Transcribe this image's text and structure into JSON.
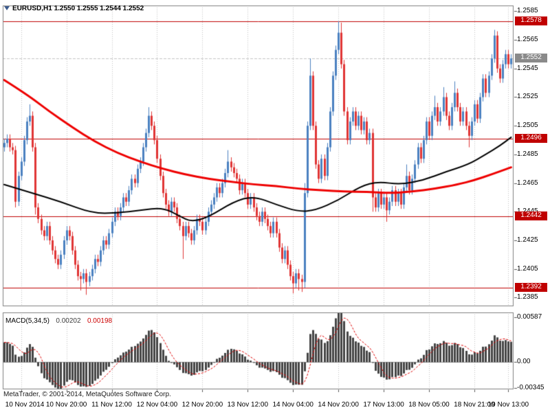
{
  "header": {
    "quote_line": "EURUSD,H1 1.2550 1.2555 1.2544 1.2552"
  },
  "footer": {
    "credit": "MetaTrader, © 2001-2014, MetaQuotes Software Corp."
  },
  "colors": {
    "background": "#ffffff",
    "bull": "#4a80c0",
    "bear": "#e03434",
    "ma_fast": "#000000",
    "ma_slow": "#ee0000",
    "hline": "#c00000",
    "hline_label_bg": "#c00000",
    "hline_label_text": "#ffffff",
    "bid_label_bg": "#8a8a8a",
    "bid_label_text": "#ffffff",
    "grid": "#c0c0c0",
    "border": "#808080",
    "axis_text": "#000000",
    "macd_hist": "#444444",
    "macd_signal": "#e00000",
    "bid_line": "#c4c4c4"
  },
  "chart_data": {
    "type": "candlestick",
    "symbol": "EURUSD",
    "timeframe": "H1",
    "title": "EURUSD,H1",
    "quote": {
      "open": "1.2550",
      "high": "1.2555",
      "low": "1.2544",
      "close": "1.2552"
    },
    "price_axis": {
      "max": 1.2589,
      "min": 1.2379,
      "ticks": [
        "1.2585",
        "1.2565",
        "1.2545",
        "1.2525",
        "1.2505",
        "1.2485",
        "1.2465",
        "1.2445",
        "1.2425",
        "1.2405",
        "1.2385"
      ]
    },
    "hlines": [
      {
        "value": 1.2578,
        "label": "1.2578"
      },
      {
        "value": 1.2496,
        "label": "1.2496"
      },
      {
        "value": 1.2442,
        "label": "1.2442"
      },
      {
        "value": 1.2392,
        "label": "1.2392"
      }
    ],
    "bid": {
      "value": 1.2552,
      "label": "1.2552"
    },
    "x_labels": [
      "10 Nov 2014",
      "10 Nov 20:00",
      "11 Nov 12:00",
      "12 Nov 04:00",
      "12 Nov 20:00",
      "13 Nov 12:00",
      "14 Nov 04:00",
      "14 Nov 20:00",
      "17 Nov 13:00",
      "18 Nov 05:00",
      "18 Nov 21:00",
      "19 Nov 13:00"
    ],
    "x_label_indices": [
      6,
      22,
      38,
      54,
      70,
      86,
      102,
      118,
      134,
      150,
      166,
      178
    ],
    "candles": {
      "first_open": 1.249,
      "default_wick": 0.0003,
      "closes": [
        1.2493,
        1.2496,
        1.249,
        1.2488,
        1.2452,
        1.247,
        1.248,
        1.2495,
        1.2508,
        1.2512,
        1.249,
        1.2448,
        1.244,
        1.2432,
        1.2428,
        1.2435,
        1.2425,
        1.2418,
        1.2412,
        1.2408,
        1.2415,
        1.2425,
        1.2432,
        1.2428,
        1.2418,
        1.2408,
        1.24,
        1.2398,
        1.2402,
        1.2396,
        1.24,
        1.2405,
        1.2412,
        1.241,
        1.2418,
        1.2425,
        1.2422,
        1.243,
        1.2438,
        1.2445,
        1.2442,
        1.2448,
        1.2455,
        1.2452,
        1.246,
        1.2468,
        1.2465,
        1.2475,
        1.248,
        1.249,
        1.25,
        1.2512,
        1.2505,
        1.2495,
        1.2482,
        1.247,
        1.2458,
        1.245,
        1.2445,
        1.2452,
        1.2448,
        1.244,
        1.2435,
        1.2428,
        1.2435,
        1.243,
        1.2425,
        1.2432,
        1.244,
        1.2438,
        1.2432,
        1.2438,
        1.2445,
        1.245,
        1.2455,
        1.2462,
        1.2458,
        1.2465,
        1.2472,
        1.248,
        1.2476,
        1.2472,
        1.2468,
        1.246,
        1.2465,
        1.2458,
        1.245,
        1.2455,
        1.2448,
        1.2442,
        1.2438,
        1.2445,
        1.244,
        1.2435,
        1.243,
        1.2438,
        1.243,
        1.242,
        1.2412,
        1.2418,
        1.2408,
        1.24,
        1.2395,
        1.2402,
        1.2398,
        1.2396,
        1.2458,
        1.2505,
        1.254,
        1.2505,
        1.2478,
        1.2468,
        1.2482,
        1.247,
        1.249,
        1.2515,
        1.254,
        1.2558,
        1.257,
        1.2548,
        1.2515,
        1.2495,
        1.2508,
        1.2515,
        1.2505,
        1.2512,
        1.2502,
        1.2508,
        1.2495,
        1.25,
        1.2455,
        1.2448,
        1.2458,
        1.245,
        1.2455,
        1.2446,
        1.2452,
        1.246,
        1.2452,
        1.2458,
        1.245,
        1.2462,
        1.247,
        1.246,
        1.2468,
        1.2478,
        1.249,
        1.2482,
        1.2495,
        1.2508,
        1.2498,
        1.2512,
        1.2518,
        1.2508,
        1.2515,
        1.2525,
        1.2512,
        1.2505,
        1.2518,
        1.2528,
        1.2518,
        1.2508,
        1.2515,
        1.2505,
        1.2498,
        1.2508,
        1.252,
        1.251,
        1.2525,
        1.2538,
        1.2528,
        1.254,
        1.2552,
        1.2568,
        1.2545,
        1.2538,
        1.2548,
        1.2555,
        1.2548,
        1.2552
      ],
      "wicks": {
        "4": [
          null,
          1.2448
        ],
        "9": [
          1.252,
          null
        ],
        "11": [
          null,
          1.2443
        ],
        "27": [
          null,
          1.239
        ],
        "29": [
          null,
          1.2387
        ],
        "51": [
          1.2518,
          null
        ],
        "63": [
          null,
          1.2412
        ],
        "79": [
          1.2488,
          null
        ],
        "102": [
          null,
          1.2388
        ],
        "104": [
          null,
          1.239
        ],
        "105": [
          null,
          1.2389
        ],
        "106": [
          1.2465,
          1.2392
        ],
        "108": [
          1.2552,
          null
        ],
        "118": [
          1.2578,
          null
        ],
        "119": [
          1.2577,
          null
        ],
        "130": [
          null,
          1.2445
        ],
        "135": [
          null,
          1.2438
        ],
        "142": [
          1.2478,
          null
        ],
        "152": [
          1.2526,
          null
        ],
        "155": [
          1.2532,
          null
        ],
        "159": [
          1.2536,
          null
        ],
        "164": [
          null,
          1.249
        ],
        "173": [
          1.2572,
          null
        ]
      }
    },
    "ma_fast": {
      "points": [
        [
          0,
          1.2464
        ],
        [
          10,
          1.2458
        ],
        [
          20,
          1.2452
        ],
        [
          31,
          1.2444
        ],
        [
          40,
          1.2444
        ],
        [
          48,
          1.2446
        ],
        [
          56,
          1.2448
        ],
        [
          62,
          1.2442
        ],
        [
          66,
          1.2438
        ],
        [
          72,
          1.2441
        ],
        [
          81,
          1.2452
        ],
        [
          88,
          1.2456
        ],
        [
          96,
          1.245
        ],
        [
          104,
          1.2445
        ],
        [
          110,
          1.2446
        ],
        [
          118,
          1.2453
        ],
        [
          126,
          1.2463
        ],
        [
          132,
          1.2466
        ],
        [
          140,
          1.2464
        ],
        [
          148,
          1.2467
        ],
        [
          156,
          1.2473
        ],
        [
          164,
          1.2478
        ],
        [
          170,
          1.2485
        ],
        [
          175,
          1.2491
        ],
        [
          179,
          1.2497
        ]
      ]
    },
    "ma_slow": {
      "points": [
        [
          0,
          1.2537
        ],
        [
          8,
          1.2527
        ],
        [
          16,
          1.2515
        ],
        [
          24,
          1.2504
        ],
        [
          32,
          1.2494
        ],
        [
          40,
          1.2486
        ],
        [
          48,
          1.248
        ],
        [
          56,
          1.2475
        ],
        [
          64,
          1.2471
        ],
        [
          72,
          1.2468
        ],
        [
          80,
          1.2466
        ],
        [
          88,
          1.2464
        ],
        [
          96,
          1.2463
        ],
        [
          104,
          1.2461
        ],
        [
          112,
          1.246
        ],
        [
          120,
          1.2459
        ],
        [
          128,
          1.2459
        ],
        [
          136,
          1.2458
        ],
        [
          144,
          1.2459
        ],
        [
          152,
          1.2461
        ],
        [
          160,
          1.2464
        ],
        [
          166,
          1.2467
        ],
        [
          172,
          1.2471
        ],
        [
          179,
          1.2476
        ]
      ]
    },
    "macd": {
      "label": "MACD(5,34,5)",
      "value_main": "0.00202",
      "value_signal": "0.00198",
      "fast": 5,
      "slow": 34,
      "signal_period": 5,
      "axis": {
        "max": 0.0065,
        "min": -0.0036,
        "ticks": [
          {
            "value": 0.00587,
            "label": "0.00587"
          },
          {
            "value": 0,
            "label": "0.00"
          },
          {
            "value": -0.00345,
            "label": "-0.00345"
          }
        ]
      }
    }
  }
}
